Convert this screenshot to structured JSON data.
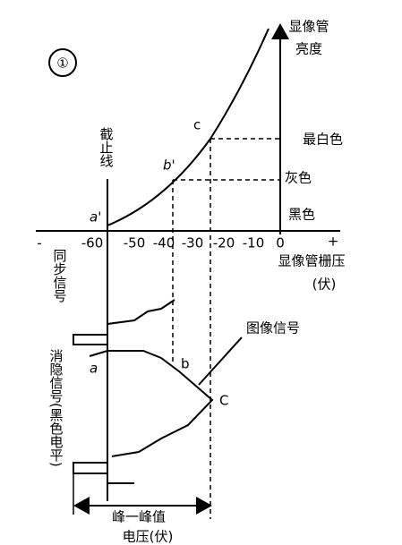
{
  "figure_number": "①",
  "brightness_axis": {
    "label_line1": "显像管",
    "label_line2": "亮度"
  },
  "cutoff_label": "截止线",
  "curve_points": {
    "a": "a'",
    "b": "b'",
    "c": "c"
  },
  "levels": {
    "white": "最白色",
    "gray": "灰色",
    "black": "黑色"
  },
  "voltage_axis": {
    "minus": "-",
    "plus": "+",
    "ticks": [
      "-60",
      "-50",
      "-40",
      "-30",
      "-20",
      "-10",
      "0"
    ],
    "label": "显像管栅压",
    "unit": "(伏)"
  },
  "waveform": {
    "sync_label": "同步信号",
    "blanking_label": "消隐信号(黑色电平)",
    "image_label": "图像信号",
    "points": {
      "a": "a",
      "b": "b",
      "c": "C"
    }
  },
  "peak_label": {
    "line1": "峰一峰值",
    "line2": "电压(伏)"
  }
}
